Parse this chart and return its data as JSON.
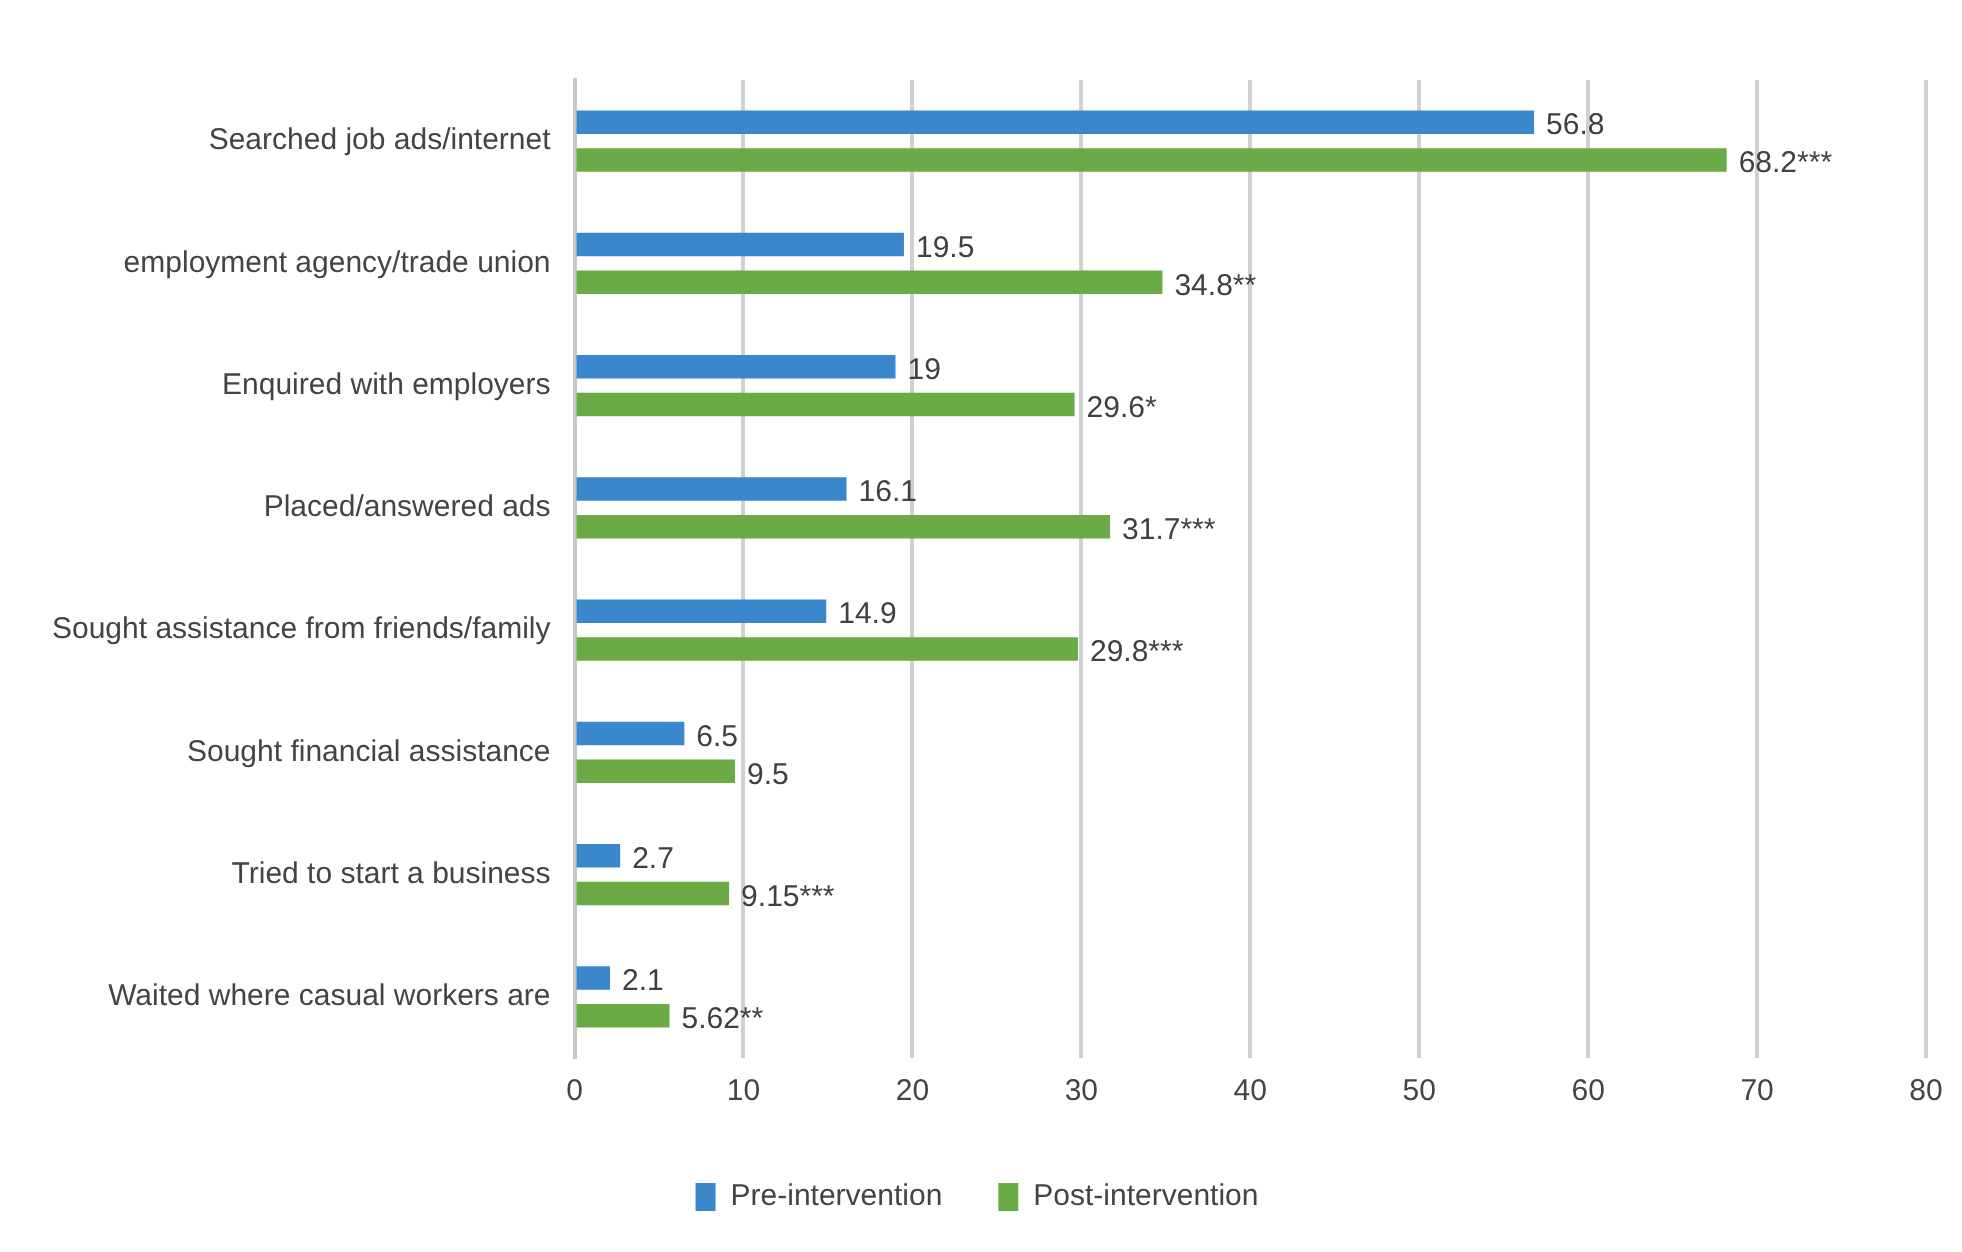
{
  "chart_data": {
    "type": "bar",
    "orientation": "horizontal",
    "categories": [
      "Searched job ads/internet",
      "employment agency/trade union",
      "Enquired with employers",
      "Placed/answered ads",
      "Sought assistance from friends/family",
      "Sought financial assistance",
      "Tried to start a business",
      "Waited where casual workers are"
    ],
    "series": [
      {
        "name": "Pre-intervention",
        "color": "#3b87cc",
        "values": [
          56.8,
          19.5,
          19,
          16.1,
          14.9,
          6.5,
          2.7,
          2.1
        ],
        "value_labels": [
          "56.8",
          "19.5",
          "19",
          "16.1",
          "14.9",
          "6.5",
          "2.7",
          "2.1"
        ]
      },
      {
        "name": "Post-intervention",
        "color": "#6aab46",
        "values": [
          68.2,
          34.8,
          29.6,
          31.7,
          29.8,
          9.5,
          9.15,
          5.62
        ],
        "value_labels": [
          "68.2***",
          "34.8**",
          "29.6*",
          "31.7***",
          "29.8***",
          "9.5",
          "9.15***",
          "5.62**"
        ]
      }
    ],
    "xlim": [
      0,
      80
    ],
    "xticks": [
      0,
      10,
      20,
      30,
      40,
      50,
      60,
      70,
      80
    ],
    "grid": "x",
    "legend": "bottom"
  }
}
